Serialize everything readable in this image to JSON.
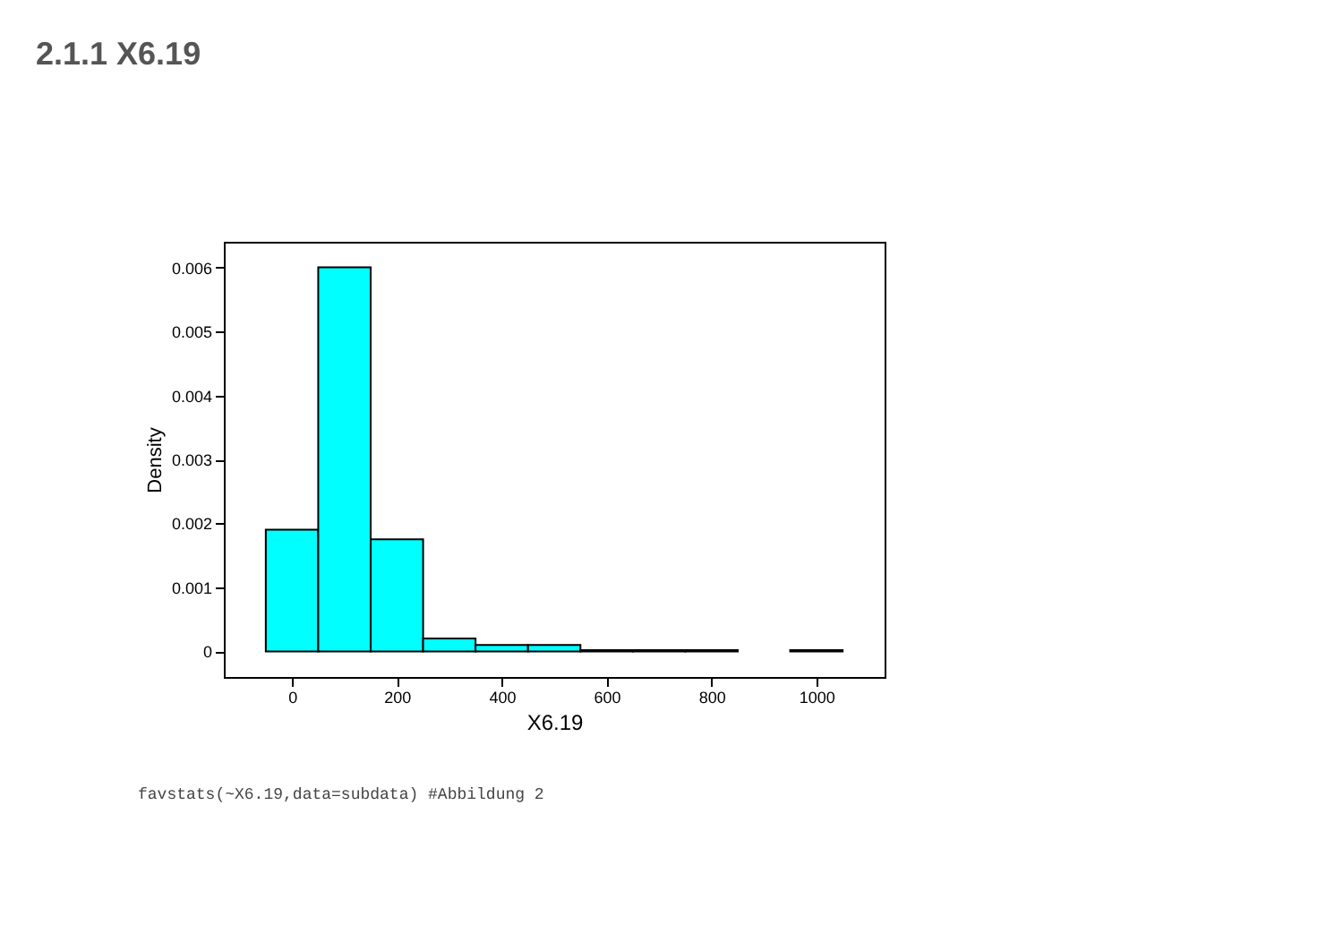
{
  "chart_data": {
    "type": "histogram",
    "title": "2.1.1 X6.19",
    "xlabel": "X6.19",
    "ylabel": "Density",
    "bins": [
      -50,
      50,
      150,
      250,
      350,
      450,
      550,
      650,
      750,
      850,
      950,
      1050
    ],
    "values": [
      0.0019,
      0.006,
      0.00175,
      0.0002,
      0.0001,
      0.0001,
      2e-05,
      2e-05,
      2e-05,
      0,
      2e-05
    ],
    "color": "#00ffff",
    "xlim": [
      -130,
      1130
    ],
    "ylim": [
      -0.0004,
      0.0064
    ],
    "xticks": [
      0,
      200,
      400,
      600,
      800,
      1000
    ],
    "yticks": [
      0,
      0.001,
      0.002,
      0.003,
      0.004,
      0.005,
      0.006
    ],
    "grid": false,
    "annotations": [
      "favstats(~X6.19,data=subdata) #Abbildung 2"
    ]
  }
}
